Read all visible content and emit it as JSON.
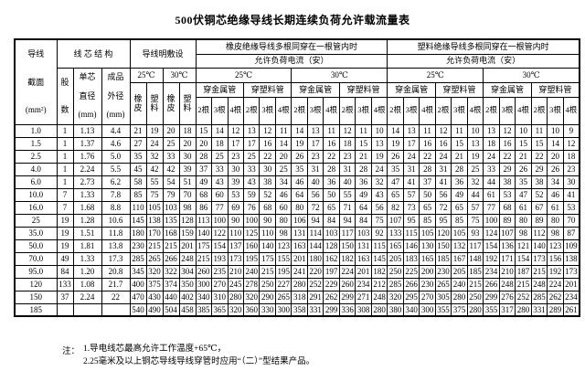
{
  "title": "500伏铜芯绝缘导线长期连续负荷允许载流量表",
  "table": {
    "header": {
      "wire_section": [
        "导线",
        "截面",
        "(mm²)"
      ],
      "core_structure": "线 芯 结 构",
      "strands": [
        "股",
        "数"
      ],
      "single_core_diameter": [
        "单芯",
        "直径",
        "(mm)"
      ],
      "finished_outer_diameter": [
        "成品",
        "外径",
        "(mm)"
      ],
      "open_laying": "导线明敷设",
      "rubber_section": "橡皮绝缘导线多根同穿在一根管内时",
      "plastic_section": "塑料绝缘导线多根同穿在一根管内时",
      "allowed_current": "允许负荷电流（安）",
      "temp_25": "25℃",
      "temp_30": "30℃",
      "rubber": "橡皮",
      "plastic": "塑料",
      "metal_conduit": "穿金属管",
      "plastic_conduit": "穿塑料管",
      "wires_2": "2根",
      "wires_3": "3根",
      "wires_4": "4根"
    },
    "rows": [
      [
        "1.0",
        "1",
        "1.13",
        "4.4",
        "21",
        "19",
        "20",
        "18",
        "15",
        "14",
        "12",
        "13",
        "12",
        "11",
        "14",
        "13",
        "11",
        "12",
        "11",
        "10",
        "14",
        "13",
        "11",
        "12",
        "11",
        "10",
        "13",
        "12",
        "10",
        "11",
        "10",
        "9"
      ],
      [
        "1.5",
        "1",
        "1.37",
        "4.6",
        "27",
        "24",
        "25",
        "20",
        "20",
        "18",
        "17",
        "17",
        "16",
        "14",
        "19",
        "17",
        "16",
        "18",
        "15",
        "13",
        "19",
        "17",
        "16",
        "16",
        "15",
        "13",
        "18",
        "16",
        "15",
        "15",
        "14",
        "12"
      ],
      [
        "2.5",
        "1",
        "1.76",
        "5.0",
        "35",
        "32",
        "33",
        "30",
        "28",
        "25",
        "23",
        "25",
        "22",
        "20",
        "26",
        "23",
        "22",
        "23",
        "21",
        "19",
        "26",
        "24",
        "22",
        "24",
        "21",
        "19",
        "24",
        "22",
        "21",
        "22",
        "20",
        "18"
      ],
      [
        "4.0",
        "1",
        "2.24",
        "5.5",
        "45",
        "42",
        "42",
        "39",
        "37",
        "33",
        "30",
        "33",
        "30",
        "25",
        "35",
        "31",
        "28",
        "31",
        "28",
        "24",
        "35",
        "31",
        "28",
        "31",
        "28",
        "25",
        "33",
        "29",
        "26",
        "29",
        "26",
        "23"
      ],
      [
        "6.0",
        "1",
        "2.73",
        "6.2",
        "58",
        "55",
        "54",
        "51",
        "49",
        "43",
        "39",
        "43",
        "38",
        "34",
        "46",
        "40",
        "36",
        "40",
        "36",
        "32",
        "47",
        "41",
        "37",
        "41",
        "36",
        "32",
        "44",
        "38",
        "35",
        "38",
        "34",
        "30"
      ],
      [
        "10.0",
        "7",
        "1.33",
        "7.8",
        "85",
        "75",
        "79",
        "70",
        "68",
        "60",
        "53",
        "59",
        "52",
        "46",
        "64",
        "56",
        "50",
        "55",
        "49",
        "43",
        "65",
        "57",
        "50",
        "56",
        "49",
        "44",
        "61",
        "53",
        "47",
        "52",
        "46",
        "41"
      ],
      [
        "16.0",
        "7",
        "1.68",
        "8.8",
        "110",
        "105",
        "103",
        "98",
        "86",
        "77",
        "69",
        "76",
        "68",
        "60",
        "80",
        "72",
        "65",
        "71",
        "64",
        "56",
        "82",
        "73",
        "65",
        "72",
        "65",
        "57",
        "77",
        "68",
        "61",
        "67",
        "61",
        "53"
      ],
      [
        "25",
        "19",
        "1.28",
        "10.6",
        "145",
        "138",
        "135",
        "128",
        "113",
        "100",
        "90",
        "100",
        "90",
        "80",
        "106",
        "94",
        "84",
        "94",
        "84",
        "75",
        "107",
        "95",
        "85",
        "95",
        "85",
        "75",
        "100",
        "89",
        "80",
        "89",
        "80",
        "70"
      ],
      [
        "35.0",
        "19",
        "1.51",
        "11.8",
        "180",
        "170",
        "168",
        "159",
        "140",
        "122",
        "110",
        "125",
        "110",
        "98",
        "131",
        "114",
        "103",
        "117",
        "103",
        "92",
        "133",
        "115",
        "105",
        "120",
        "105",
        "93",
        "124",
        "107",
        "98",
        "112",
        "98",
        "87"
      ],
      [
        "50.0",
        "19",
        "1.81",
        "13.8",
        "230",
        "215",
        "215",
        "201",
        "175",
        "154",
        "137",
        "160",
        "140",
        "123",
        "163",
        "144",
        "128",
        "150",
        "131",
        "115",
        "165",
        "146",
        "130",
        "150",
        "132",
        "117",
        "154",
        "136",
        "121",
        "140",
        "123",
        "109"
      ],
      [
        "70.0",
        "49",
        "1.33",
        "17.3",
        "285",
        "265",
        "266",
        "248",
        "215",
        "193",
        "173",
        "195",
        "175",
        "155",
        "201",
        "180",
        "162",
        "182",
        "163",
        "145",
        "205",
        "183",
        "165",
        "185",
        "167",
        "148",
        "192",
        "171",
        "154",
        "173",
        "156",
        "138"
      ],
      [
        "95.0",
        "84",
        "1.20",
        "20.8",
        "345",
        "320",
        "322",
        "304",
        "260",
        "235",
        "210",
        "240",
        "215",
        "195",
        "241",
        "220",
        "197",
        "224",
        "201",
        "182",
        "250",
        "225",
        "200",
        "230",
        "205",
        "185",
        "234",
        "210",
        "187",
        "215",
        "192",
        "173"
      ],
      [
        "120",
        "133",
        "1.08",
        "21.7",
        "400",
        "375",
        "374",
        "350",
        "300",
        "270",
        "245",
        "278",
        "250",
        "227",
        "280",
        "252",
        "229",
        "260",
        "234",
        "212",
        "285",
        "266",
        "230",
        "265",
        "240",
        "215",
        "266",
        "248",
        "215",
        "248",
        "224",
        "201"
      ],
      [
        "150",
        "37",
        "2.24",
        "22",
        "470",
        "430",
        "440",
        "402",
        "340",
        "310",
        "280",
        "320",
        "290",
        "265",
        "318",
        "291",
        "262",
        "299",
        "271",
        "248",
        "320",
        "295",
        "270",
        "305",
        "280",
        "250",
        "299",
        "276",
        "252",
        "285",
        "262",
        "234"
      ],
      [
        "185",
        "",
        "",
        "",
        "540",
        "490",
        "504",
        "458",
        "385",
        "365",
        "320",
        "360",
        "330",
        "300",
        "358",
        "331",
        "299",
        "336",
        "308",
        "280",
        "380",
        "340",
        "300",
        "355",
        "375",
        "280",
        "355",
        "317",
        "280",
        "331",
        "289",
        "261"
      ]
    ]
  },
  "notes": {
    "label": "注：",
    "line1": "1.导电线芯最高允许工作温度+65℃，",
    "line2": "2.25毫米及以上铜芯导线导线穿管时应用“（二）”型结果产品。"
  }
}
